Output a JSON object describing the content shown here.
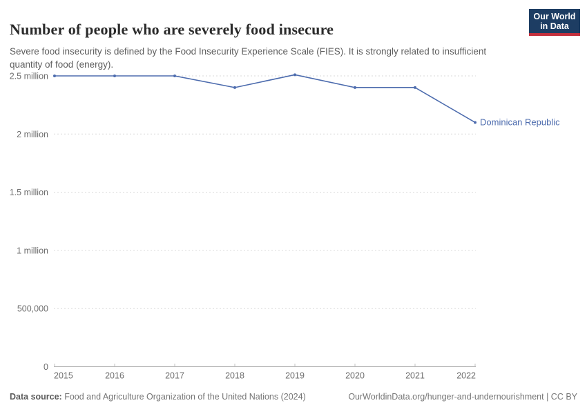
{
  "header": {
    "title": "Number of people who are severely food insecure",
    "subtitle": "Severe food insecurity is defined by the Food Insecurity Experience Scale (FIES). It is strongly related to insufficient quantity of food (energy).",
    "logo": {
      "line1": "Our World",
      "line2": "in Data"
    }
  },
  "chart_data": {
    "type": "line",
    "title": "Number of people who are severely food insecure",
    "x": [
      2015,
      2016,
      2017,
      2018,
      2019,
      2020,
      2021,
      2022
    ],
    "series": [
      {
        "name": "Dominican Republic",
        "color": "#4d6cae",
        "values": [
          2500000,
          2500000,
          2500000,
          2400000,
          2510000,
          2400000,
          2400000,
          2100000
        ]
      }
    ],
    "ylim": [
      0,
      2520000
    ],
    "xlabel": "",
    "ylabel": "",
    "grid": "horizontal-dashed",
    "legend": "end-of-line-label",
    "yticks": [
      {
        "label": "2.5 million",
        "value": 2500000
      },
      {
        "label": "2 million",
        "value": 2000000
      },
      {
        "label": "1.5 million",
        "value": 1500000
      },
      {
        "label": "1 million",
        "value": 1000000
      },
      {
        "label": "500,000",
        "value": 500000
      },
      {
        "label": "0",
        "value": 0
      }
    ]
  },
  "footer": {
    "datasource_label": "Data source:",
    "datasource_text": "Food and Agriculture Organization of the United Nations (2024)",
    "link_text": "OurWorldinData.org/hunger-and-undernourishment",
    "license_suffix": " | CC BY"
  },
  "colors": {
    "line": "#4d6cae",
    "grid": "#dadada",
    "axis": "#a8a8a8",
    "tick": "#c2c2c2",
    "tick_text": "#6e6e6e",
    "logo_bg": "#1d3d63",
    "logo_stripe": "#c4303d"
  }
}
